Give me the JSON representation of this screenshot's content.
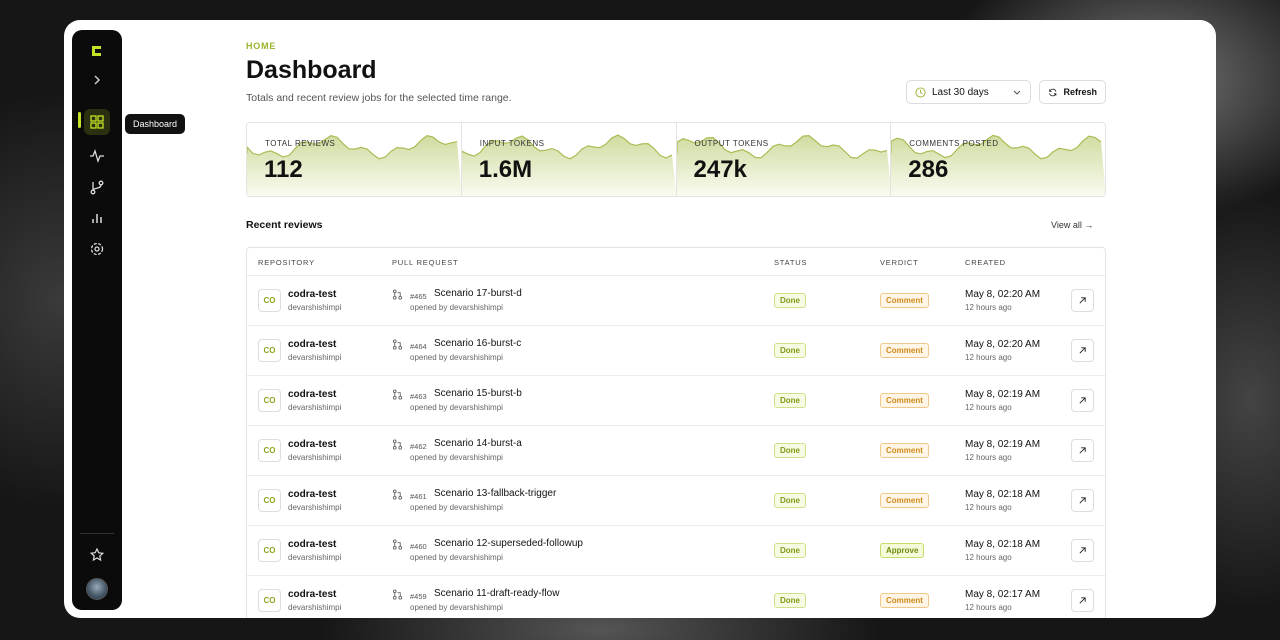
{
  "sidebar": {
    "tooltip": "Dashboard"
  },
  "header": {
    "breadcrumb": "HOME",
    "title": "Dashboard",
    "subtitle": "Totals and recent review jobs for the selected time range.",
    "range": "Last 30 days",
    "refresh": "Refresh"
  },
  "stats": [
    {
      "label": "TOTAL REVIEWS",
      "value": "112"
    },
    {
      "label": "INPUT TOKENS",
      "value": "1.6M"
    },
    {
      "label": "OUTPUT TOKENS",
      "value": "247k"
    },
    {
      "label": "COMMENTS POSTED",
      "value": "286"
    }
  ],
  "section": {
    "title": "Recent reviews",
    "link": "View all"
  },
  "table": {
    "columns": [
      "REPOSITORY",
      "PULL REQUEST",
      "STATUS",
      "VERDICT",
      "CREATED"
    ],
    "rows": [
      {
        "avatar": "CO",
        "repo": "codra-test",
        "owner": "devarshishimpi",
        "number": "#465",
        "title": "Scenario 17-burst-d",
        "opened": "opened by devarshishimpi",
        "status": "Done",
        "verdict": "Comment",
        "created": "May 8, 02:20 AM",
        "ago": "12 hours ago"
      },
      {
        "avatar": "CO",
        "repo": "codra-test",
        "owner": "devarshishimpi",
        "number": "#464",
        "title": "Scenario 16-burst-c",
        "opened": "opened by devarshishimpi",
        "status": "Done",
        "verdict": "Comment",
        "created": "May 8, 02:20 AM",
        "ago": "12 hours ago"
      },
      {
        "avatar": "CO",
        "repo": "codra-test",
        "owner": "devarshishimpi",
        "number": "#463",
        "title": "Scenario 15-burst-b",
        "opened": "opened by devarshishimpi",
        "status": "Done",
        "verdict": "Comment",
        "created": "May 8, 02:19 AM",
        "ago": "12 hours ago"
      },
      {
        "avatar": "CO",
        "repo": "codra-test",
        "owner": "devarshishimpi",
        "number": "#462",
        "title": "Scenario 14-burst-a",
        "opened": "opened by devarshishimpi",
        "status": "Done",
        "verdict": "Comment",
        "created": "May 8, 02:19 AM",
        "ago": "12 hours ago"
      },
      {
        "avatar": "CO",
        "repo": "codra-test",
        "owner": "devarshishimpi",
        "number": "#461",
        "title": "Scenario 13-fallback-trigger",
        "opened": "opened by devarshishimpi",
        "status": "Done",
        "verdict": "Comment",
        "created": "May 8, 02:18 AM",
        "ago": "12 hours ago"
      },
      {
        "avatar": "CO",
        "repo": "codra-test",
        "owner": "devarshishimpi",
        "number": "#460",
        "title": "Scenario 12-superseded-followup",
        "opened": "opened by devarshishimpi",
        "status": "Done",
        "verdict": "Approve",
        "created": "May 8, 02:18 AM",
        "ago": "12 hours ago"
      },
      {
        "avatar": "CO",
        "repo": "codra-test",
        "owner": "devarshishimpi",
        "number": "#459",
        "title": "Scenario 11-draft-ready-flow",
        "opened": "opened by devarshishimpi",
        "status": "Done",
        "verdict": "Comment",
        "created": "May 8, 02:17 AM",
        "ago": "12 hours ago"
      }
    ]
  }
}
